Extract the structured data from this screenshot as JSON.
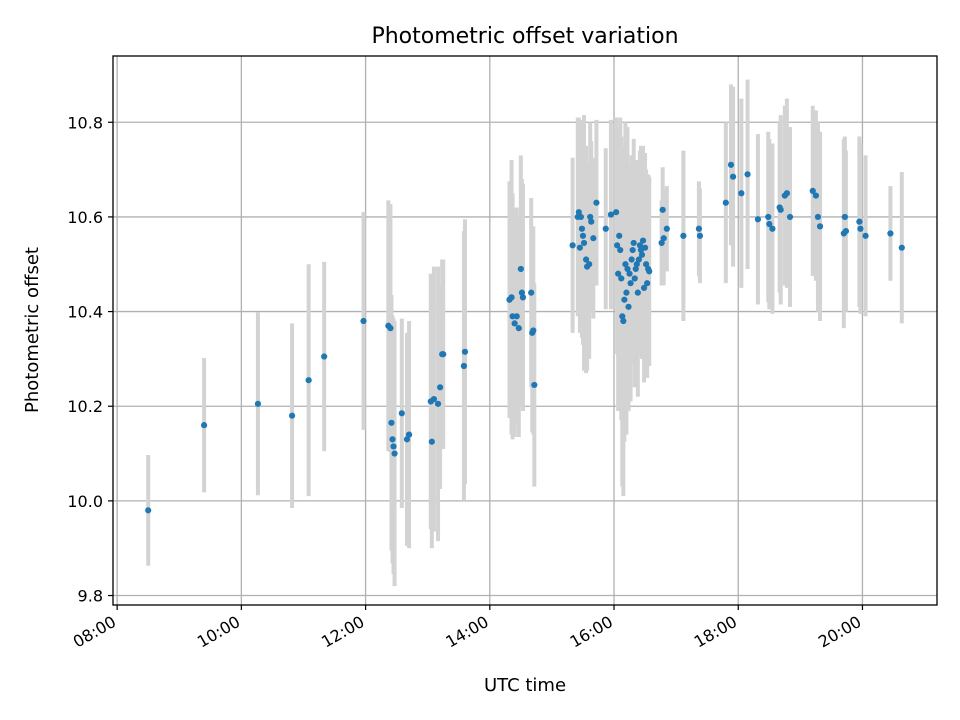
{
  "chart_data": {
    "type": "scatter",
    "title": "Photometric offset variation",
    "xlabel": "UTC time",
    "ylabel": "Photometric offset",
    "xlim": [
      "07:56",
      "21:12"
    ],
    "ylim": [
      9.78,
      10.94
    ],
    "x_ticks": [
      "08:00",
      "10:00",
      "12:00",
      "14:00",
      "16:00",
      "18:00",
      "20:00"
    ],
    "y_ticks": [
      9.8,
      10.0,
      10.2,
      10.4,
      10.6,
      10.8
    ],
    "y_tick_labels": [
      "9.8",
      "10.0",
      "10.2",
      "10.4",
      "10.6",
      "10.8"
    ],
    "grid": true,
    "colors": {
      "marker": "#1f77b4",
      "errorbar": "#d3d3d3"
    },
    "series": [
      {
        "x": [
          "08:30",
          "09:24",
          "10:16",
          "10:49",
          "11:05",
          "11:20",
          "11:58",
          "12:22",
          "12:24",
          "12:25",
          "12:26",
          "12:27",
          "12:28",
          "12:35",
          "12:40",
          "12:42",
          "13:03",
          "13:04",
          "13:06",
          "13:10",
          "13:12",
          "13:14",
          "13:15",
          "13:35",
          "13:36",
          "14:19",
          "14:21",
          "14:22",
          "14:24",
          "14:26",
          "14:28",
          "14:30",
          "14:31",
          "14:32",
          "14:40",
          "14:41",
          "14:42",
          "14:43",
          "15:20",
          "15:25",
          "15:26",
          "15:27",
          "15:28",
          "15:29",
          "15:30",
          "15:31",
          "15:33",
          "15:34",
          "15:36",
          "15:37",
          "15:38",
          "15:40",
          "15:43",
          "15:52",
          "15:57",
          "16:02",
          "16:03",
          "16:04",
          "16:05",
          "16:06",
          "16:07",
          "16:08",
          "16:09",
          "16:10",
          "16:11",
          "16:12",
          "16:13",
          "16:14",
          "16:15",
          "16:16",
          "16:17",
          "16:18",
          "16:19",
          "16:20",
          "16:21",
          "16:22",
          "16:23",
          "16:24",
          "16:25",
          "16:26",
          "16:27",
          "16:28",
          "16:29",
          "16:30",
          "16:31",
          "16:32",
          "16:33",
          "16:34",
          "16:46",
          "16:47",
          "16:48",
          "16:51",
          "17:07",
          "17:22",
          "17:23",
          "17:48",
          "17:53",
          "17:55",
          "18:03",
          "18:09",
          "18:19",
          "18:29",
          "18:30",
          "18:33",
          "18:40",
          "18:41",
          "18:45",
          "18:47",
          "18:50",
          "19:12",
          "19:15",
          "19:17",
          "19:19",
          "19:42",
          "19:43",
          "19:44",
          "19:57",
          "19:58",
          "20:03",
          "20:27",
          "20:38"
        ],
        "y": [
          9.98,
          10.16,
          10.205,
          10.18,
          10.255,
          10.305,
          10.38,
          10.37,
          10.365,
          10.165,
          10.13,
          10.115,
          10.1,
          10.185,
          10.13,
          10.14,
          10.21,
          10.125,
          10.215,
          10.205,
          10.24,
          10.31,
          10.31,
          10.285,
          10.315,
          10.425,
          10.43,
          10.39,
          10.375,
          10.39,
          10.365,
          10.49,
          10.44,
          10.43,
          10.44,
          10.355,
          10.36,
          10.245,
          10.54,
          10.6,
          10.61,
          10.535,
          10.6,
          10.575,
          10.56,
          10.545,
          10.51,
          10.495,
          10.5,
          10.6,
          10.59,
          10.555,
          10.63,
          10.575,
          10.605,
          10.61,
          10.54,
          10.48,
          10.56,
          10.53,
          10.47,
          10.39,
          10.38,
          10.425,
          10.5,
          10.44,
          10.49,
          10.41,
          10.48,
          10.46,
          10.51,
          10.53,
          10.545,
          10.47,
          10.49,
          10.5,
          10.44,
          10.51,
          10.54,
          10.53,
          10.52,
          10.55,
          10.45,
          10.535,
          10.5,
          10.46,
          10.49,
          10.485,
          10.545,
          10.615,
          10.555,
          10.575,
          10.56,
          10.575,
          10.56,
          10.63,
          10.71,
          10.685,
          10.65,
          10.69,
          10.595,
          10.6,
          10.585,
          10.575,
          10.62,
          10.615,
          10.645,
          10.65,
          10.6,
          10.655,
          10.645,
          10.6,
          10.58,
          10.565,
          10.6,
          10.57,
          10.59,
          10.575,
          10.56,
          10.565,
          10.535
        ],
        "yerr": [
          0.117,
          0.142,
          0.193,
          0.195,
          0.245,
          0.2,
          0.23,
          0.265,
          0.262,
          0.27,
          0.262,
          0.27,
          0.28,
          0.2,
          0.225,
          0.24,
          0.27,
          0.225,
          0.28,
          0.29,
          0.215,
          0.2,
          0.2,
          0.285,
          0.28,
          0.25,
          0.29,
          0.26,
          0.24,
          0.23,
          0.23,
          0.24,
          0.24,
          0.24,
          0.2,
          0.21,
          0.22,
          0.215,
          0.185,
          0.21,
          0.2,
          0.18,
          0.2,
          0.23,
          0.23,
          0.27,
          0.24,
          0.22,
          0.2,
          0.2,
          0.17,
          0.17,
          0.175,
          0.17,
          0.2,
          0.2,
          0.23,
          0.29,
          0.23,
          0.28,
          0.3,
          0.36,
          0.37,
          0.3,
          0.3,
          0.3,
          0.3,
          0.22,
          0.23,
          0.25,
          0.22,
          0.2,
          0.22,
          0.23,
          0.22,
          0.22,
          0.22,
          0.2,
          0.2,
          0.22,
          0.22,
          0.2,
          0.2,
          0.2,
          0.2,
          0.2,
          0.2,
          0.2,
          0.09,
          0.09,
          0.1,
          0.09,
          0.18,
          0.1,
          0.1,
          0.17,
          0.17,
          0.19,
          0.2,
          0.2,
          0.18,
          0.18,
          0.18,
          0.18,
          0.18,
          0.2,
          0.19,
          0.2,
          0.19,
          0.18,
          0.18,
          0.2,
          0.2,
          0.2,
          0.17,
          0.17,
          0.18,
          0.18,
          0.17,
          0.1,
          0.16
        ]
      }
    ]
  }
}
